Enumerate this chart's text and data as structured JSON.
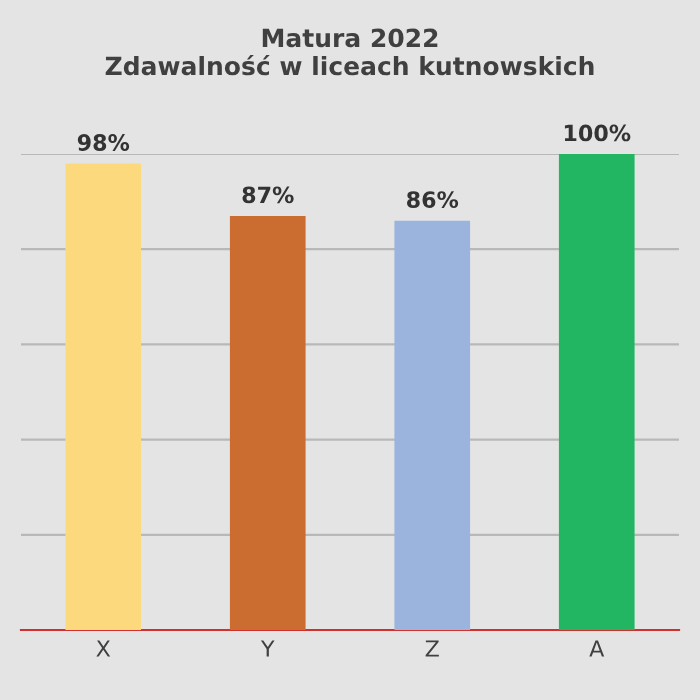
{
  "chart_data": {
    "type": "bar",
    "title": "Matura 2022\nZdawalność w liceach kutnowskich",
    "categories": [
      "X",
      "Y",
      "Z",
      "A"
    ],
    "values": [
      98,
      87,
      86,
      100
    ],
    "colors": [
      "#fcd97c",
      "#cb6d31",
      "#9bb4de",
      "#22b663"
    ],
    "value_labels": [
      "98%",
      "87%",
      "86%",
      "100%"
    ],
    "ylim": [
      0,
      100
    ],
    "yticks": [
      {
        "value": 0,
        "label": null
      },
      {
        "value": 20,
        "label": null
      },
      {
        "value": 40,
        "label": null
      },
      {
        "value": 60,
        "label": null
      },
      {
        "value": 80,
        "label": null
      },
      {
        "value": 100,
        "label": null
      }
    ],
    "grid": "y",
    "tick_labels": "x",
    "legend": false
  }
}
